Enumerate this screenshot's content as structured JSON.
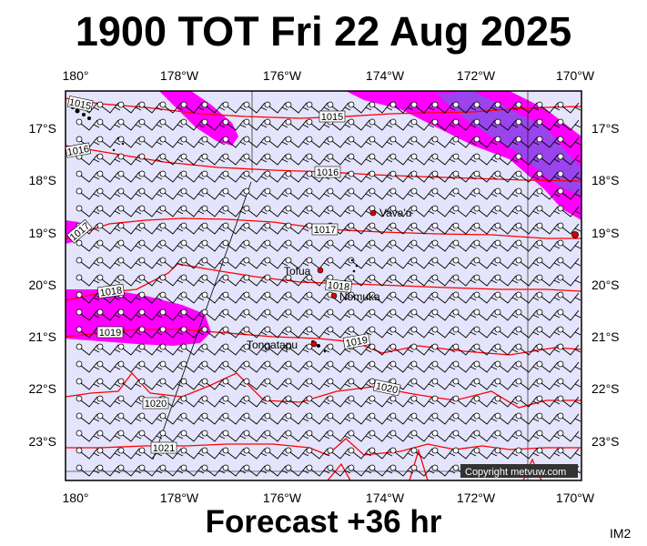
{
  "header": {
    "title": "1900 TOT Fri 22 Aug 2025"
  },
  "footer": {
    "forecast": "Forecast +36 hr",
    "code": "IM2"
  },
  "map": {
    "credit": "Copyright metvuw.com",
    "lon_ticks": [
      "180°",
      "178°W",
      "176°W",
      "174°W",
      "172°W",
      "170°W"
    ],
    "lat_ticks": [
      "17°S",
      "18°S",
      "19°S",
      "20°S",
      "21°S",
      "22°S",
      "23°S"
    ],
    "places": [
      "Vava'u",
      "Tofua",
      "Nomuka",
      "Tongatapu"
    ],
    "isobar_labels": [
      "1015",
      "1015",
      "1016",
      "1016",
      "1017",
      "1017",
      "1018",
      "1018",
      "1019",
      "1019",
      "1020",
      "1020",
      "1021"
    ],
    "colors": {
      "ocean": "#e4e4fc",
      "isobar": "#ff0000",
      "rain_light": "#ff00ff",
      "rain_heavy": "#9a44ee",
      "town": "#dd0000"
    }
  }
}
